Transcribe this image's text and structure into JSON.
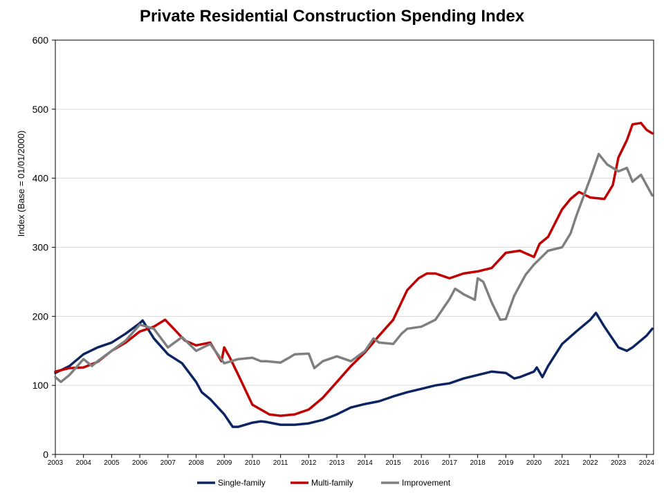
{
  "chart_data": {
    "type": "line",
    "title": "Private Residential Construction Spending Index",
    "xlabel": "",
    "ylabel": "Index  (Base = 01/01/2000)",
    "ylim": [
      0,
      600
    ],
    "xlim": [
      2003,
      2024.25
    ],
    "yticks": [
      0,
      100,
      200,
      300,
      400,
      500,
      600
    ],
    "xticks": [
      "2003",
      "2004",
      "2005",
      "2006",
      "2007",
      "2008",
      "2009",
      "2010",
      "2011",
      "2012",
      "2013",
      "2014",
      "2015",
      "2016",
      "2017",
      "2018",
      "2019",
      "2020",
      "2021",
      "2022",
      "2023",
      "2024"
    ],
    "grid": "horizontal",
    "legend_position": "bottom",
    "series": [
      {
        "name": "Single-family",
        "color": "#0c2461",
        "x": [
          2003.0,
          2003.5,
          2004.0,
          2004.5,
          2005.0,
          2005.5,
          2006.0,
          2006.1,
          2006.5,
          2007.0,
          2007.5,
          2008.0,
          2008.2,
          2008.5,
          2009.0,
          2009.3,
          2009.5,
          2010.0,
          2010.3,
          2010.5,
          2011.0,
          2011.5,
          2012.0,
          2012.5,
          2013.0,
          2013.5,
          2014.0,
          2014.5,
          2015.0,
          2015.5,
          2016.0,
          2016.5,
          2017.0,
          2017.5,
          2018.0,
          2018.5,
          2019.0,
          2019.3,
          2019.5,
          2020.0,
          2020.1,
          2020.3,
          2020.5,
          2021.0,
          2021.5,
          2022.0,
          2022.2,
          2022.5,
          2023.0,
          2023.3,
          2023.5,
          2024.0,
          2024.2
        ],
        "values": [
          118,
          128,
          145,
          155,
          162,
          175,
          190,
          194,
          168,
          145,
          132,
          105,
          90,
          80,
          58,
          40,
          40,
          46,
          48,
          47,
          43,
          43,
          45,
          50,
          58,
          68,
          73,
          77,
          84,
          90,
          95,
          100,
          103,
          110,
          115,
          120,
          118,
          110,
          112,
          120,
          126,
          112,
          128,
          160,
          178,
          195,
          205,
          185,
          155,
          150,
          155,
          172,
          182
        ]
      },
      {
        "name": "Multi-family",
        "color": "#c00000",
        "x": [
          2003.0,
          2003.5,
          2004.0,
          2004.5,
          2005.0,
          2005.5,
          2006.0,
          2006.5,
          2006.9,
          2007.3,
          2007.6,
          2008.0,
          2008.5,
          2008.9,
          2009.0,
          2009.2,
          2009.5,
          2010.0,
          2010.3,
          2010.6,
          2011.0,
          2011.5,
          2012.0,
          2012.5,
          2013.0,
          2013.5,
          2014.0,
          2014.5,
          2015.0,
          2015.5,
          2015.9,
          2016.2,
          2016.5,
          2017.0,
          2017.5,
          2018.0,
          2018.5,
          2019.0,
          2019.5,
          2020.0,
          2020.2,
          2020.5,
          2021.0,
          2021.3,
          2021.6,
          2022.0,
          2022.5,
          2022.8,
          2023.0,
          2023.3,
          2023.5,
          2023.8,
          2024.0,
          2024.2
        ],
        "values": [
          120,
          125,
          126,
          134,
          150,
          162,
          178,
          185,
          195,
          178,
          165,
          158,
          162,
          135,
          155,
          140,
          115,
          72,
          65,
          58,
          56,
          58,
          65,
          82,
          105,
          128,
          148,
          172,
          195,
          238,
          255,
          262,
          262,
          255,
          262,
          265,
          270,
          292,
          295,
          286,
          305,
          315,
          355,
          370,
          380,
          372,
          370,
          390,
          430,
          455,
          478,
          480,
          470,
          465
        ]
      },
      {
        "name": "Improvement",
        "color": "#7f7f7f",
        "x": [
          2003.0,
          2003.2,
          2003.5,
          2004.0,
          2004.3,
          2004.5,
          2005.0,
          2005.5,
          2006.0,
          2006.5,
          2007.0,
          2007.5,
          2008.0,
          2008.5,
          2009.0,
          2009.5,
          2010.0,
          2010.3,
          2010.5,
          2011.0,
          2011.3,
          2011.5,
          2012.0,
          2012.2,
          2012.5,
          2013.0,
          2013.5,
          2014.0,
          2014.3,
          2014.5,
          2015.0,
          2015.3,
          2015.5,
          2016.0,
          2016.5,
          2017.0,
          2017.2,
          2017.5,
          2017.9,
          2018.0,
          2018.2,
          2018.5,
          2018.8,
          2019.0,
          2019.3,
          2019.7,
          2020.0,
          2020.5,
          2021.0,
          2021.3,
          2021.5,
          2022.0,
          2022.3,
          2022.6,
          2023.0,
          2023.3,
          2023.5,
          2023.8,
          2024.0,
          2024.2
        ],
        "values": [
          112,
          105,
          115,
          138,
          128,
          135,
          150,
          165,
          188,
          182,
          155,
          170,
          150,
          160,
          132,
          138,
          140,
          135,
          135,
          133,
          140,
          145,
          146,
          125,
          135,
          142,
          135,
          150,
          168,
          162,
          160,
          175,
          182,
          185,
          195,
          225,
          240,
          232,
          224,
          255,
          250,
          220,
          195,
          196,
          230,
          260,
          275,
          295,
          300,
          320,
          345,
          400,
          435,
          420,
          410,
          415,
          395,
          405,
          390,
          375
        ]
      }
    ]
  }
}
